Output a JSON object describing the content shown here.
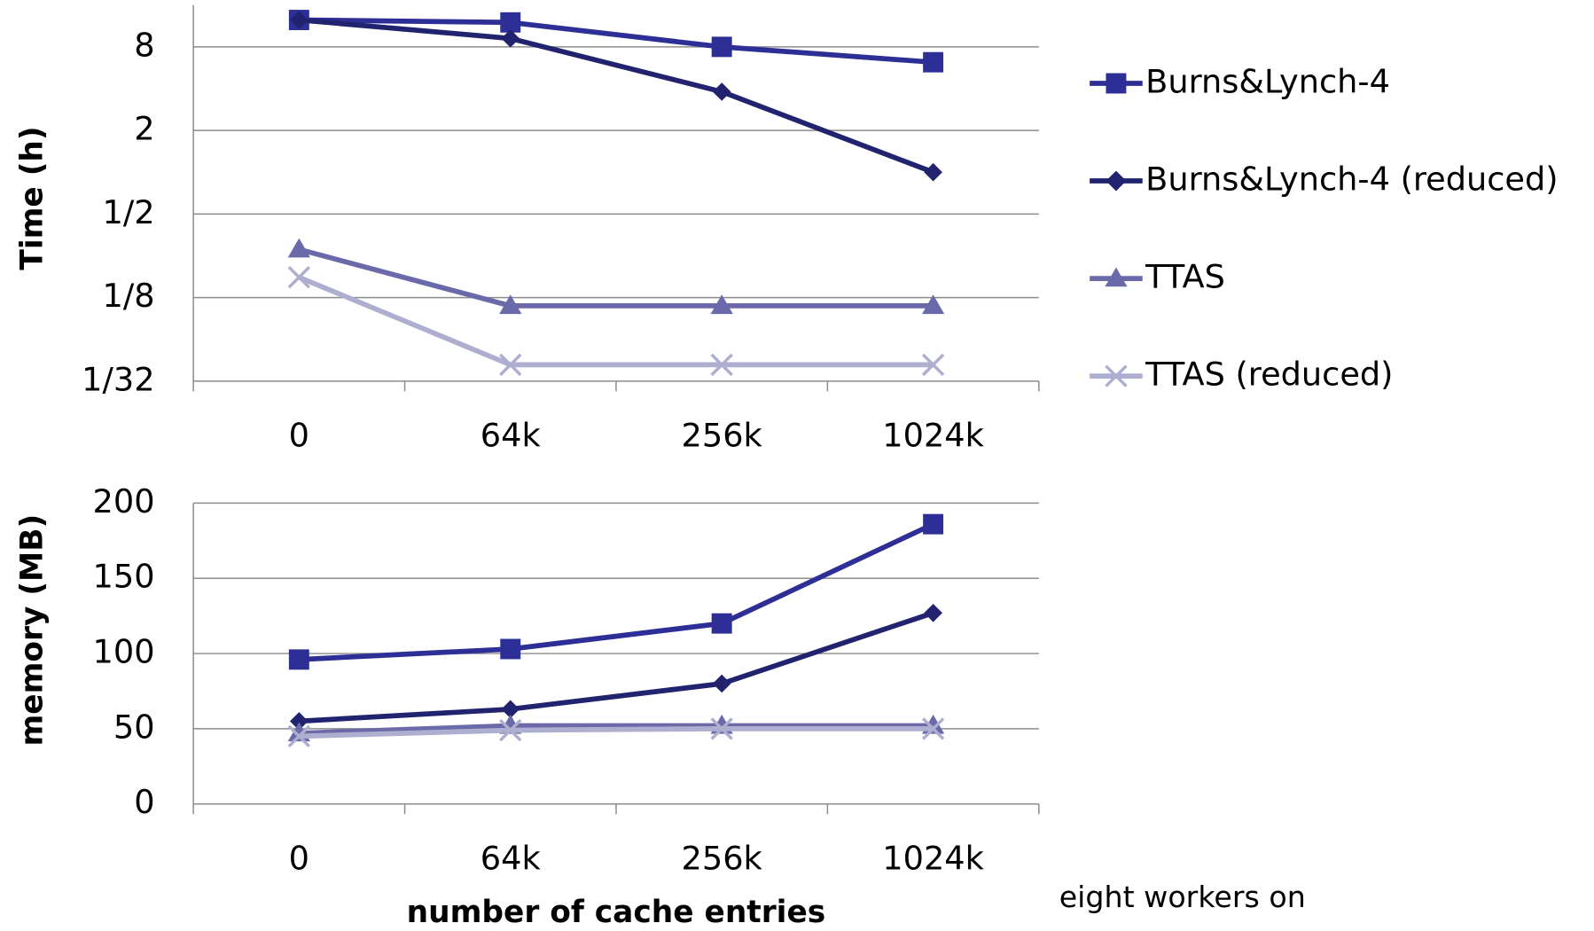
{
  "chart_data": [
    {
      "type": "line",
      "log_scale": "y",
      "grid": true,
      "legend": "right",
      "y_label": "Time (h)",
      "categories": [
        "0",
        "64k",
        "256k",
        "1024k"
      ],
      "ylim": [
        0.03125,
        16
      ],
      "yticks": [
        {
          "value": 0.03125,
          "label": "1/32"
        },
        {
          "value": 0.125,
          "label": "1/8"
        },
        {
          "value": 0.5,
          "label": "1/2"
        },
        2,
        8
      ],
      "series": [
        {
          "name": "Burns&Lynch-4",
          "color": "#2e2f96",
          "marker": "square",
          "values": [
            12.5,
            12.0,
            8,
            6.2
          ]
        },
        {
          "name": "Burns&Lynch-4 (reduced)",
          "color": "#22236f",
          "marker": "diamond",
          "values": [
            12.5,
            9.2,
            3.8,
            1.0
          ]
        },
        {
          "name": "TTAS",
          "color": "#6a6aab",
          "marker": "triangle",
          "values": [
            0.278,
            0.109,
            0.109,
            0.109
          ]
        },
        {
          "name": "TTAS (reduced)",
          "color": "#aeaed0",
          "marker": "x",
          "values": [
            0.175,
            0.041,
            0.041,
            0.041
          ]
        }
      ]
    },
    {
      "type": "line",
      "grid": true,
      "y_label": "memory (MB)",
      "x_label": "number of cache entries",
      "categories": [
        "0",
        "64k",
        "256k",
        "1024k"
      ],
      "ylim": [
        0,
        200
      ],
      "yticks": [
        0,
        50,
        100,
        150,
        200
      ],
      "series": [
        {
          "color": "#2e2f96",
          "marker": "square",
          "values": [
            96,
            103,
            120,
            186
          ]
        },
        {
          "color": "#22236f",
          "marker": "diamond",
          "values": [
            55,
            63,
            80,
            127
          ]
        },
        {
          "color": "#6a6aab",
          "marker": "triangle",
          "values": [
            47,
            52,
            52,
            52
          ]
        },
        {
          "color": "#aeaed0",
          "marker": "x",
          "values": [
            45,
            49,
            50,
            50
          ]
        }
      ]
    }
  ],
  "note": "eight workers on"
}
